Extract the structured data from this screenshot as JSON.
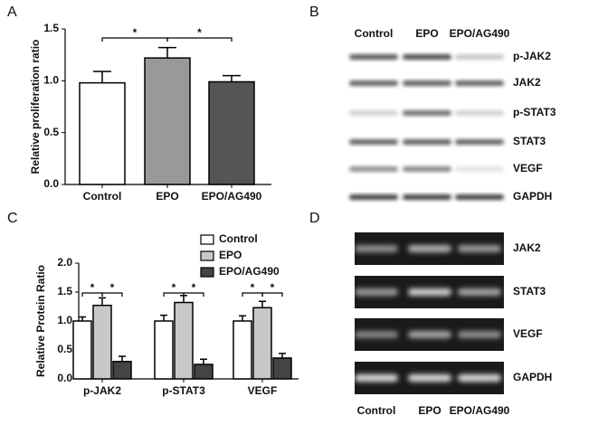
{
  "chart_data": [
    {
      "type": "bar",
      "label": "A",
      "y_label": "Relative proliferation ratio",
      "categories": [
        "Control",
        "EPO",
        "EPO/AG490"
      ],
      "values": [
        0.98,
        1.22,
        0.99
      ],
      "errors": [
        0.11,
        0.1,
        0.06
      ],
      "colors": [
        "#ffffff",
        "#999999",
        "#555555"
      ],
      "ylim": [
        0,
        1.5
      ],
      "yticks": [
        {
          "value": 0,
          "label": "0.0"
        },
        {
          "value": 0.5,
          "label": "0.5"
        },
        {
          "value": 1,
          "label": "1.0"
        },
        {
          "value": 1.5,
          "label": "1.5"
        }
      ],
      "annotations": [
        "*",
        "*"
      ]
    },
    {
      "type": "grouped_bar",
      "label": "C",
      "y_label": "Relative Protein Ratio",
      "categories": [
        "p-JAK2",
        "p-STAT3",
        "VEGF"
      ],
      "series": [
        {
          "name": "Control",
          "color": "#ffffff",
          "values": [
            1.0,
            1.0,
            1.0
          ],
          "errors": [
            0.07,
            0.1,
            0.09
          ]
        },
        {
          "name": "EPO",
          "color": "#c8c8c8",
          "values": [
            1.27,
            1.32,
            1.23
          ],
          "errors": [
            0.13,
            0.12,
            0.11
          ]
        },
        {
          "name": "EPO/AG490",
          "color": "#444444",
          "values": [
            0.3,
            0.25,
            0.36
          ],
          "errors": [
            0.09,
            0.09,
            0.08
          ]
        }
      ],
      "ylim": [
        0,
        2.0
      ],
      "yticks": [
        {
          "value": 0,
          "label": "0.0"
        },
        {
          "value": 0.5,
          "label": "0.5"
        },
        {
          "value": 1,
          "label": "1.0"
        },
        {
          "value": 1.5,
          "label": "1.5"
        },
        {
          "value": 2,
          "label": "2.0"
        }
      ],
      "annotations": [
        "*",
        "*",
        "*",
        "*",
        "*",
        "*"
      ]
    }
  ],
  "blot_panel": {
    "label": "B",
    "columns": [
      "Control",
      "EPO",
      "EPO/AG490"
    ],
    "rows": [
      "p-JAK2",
      "JAK2",
      "p-STAT3",
      "STAT3",
      "VEGF",
      "GAPDH"
    ]
  },
  "gel_panel": {
    "label": "D",
    "columns": [
      "Control",
      "EPO",
      "EPO/AG490"
    ],
    "rows": [
      "JAK2",
      "STAT3",
      "VEGF",
      "GAPDH"
    ]
  }
}
